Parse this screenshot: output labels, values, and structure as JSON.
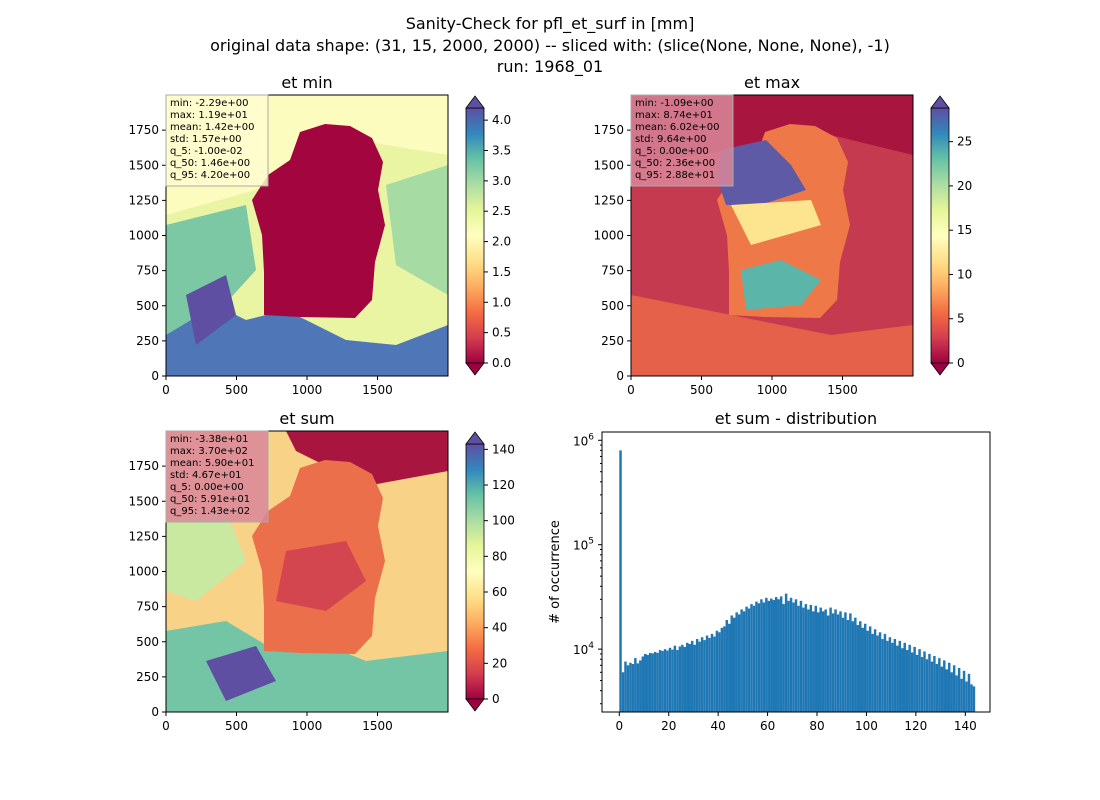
{
  "figure": {
    "title_lines": [
      "Sanity-Check for pfl_et_surf in [mm]",
      "original data shape: (31, 15, 2000, 2000) -- sliced with: (slice(None, None, None), -1)",
      "run: 1968_01"
    ],
    "colormap": "Spectral"
  },
  "chart_data": [
    {
      "type": "heatmap",
      "title": "et min",
      "xlim": [
        0,
        2000
      ],
      "ylim": [
        0,
        2000
      ],
      "xticks": [
        "0",
        "500",
        "1000",
        "1500"
      ],
      "yticks": [
        "0",
        "250",
        "500",
        "750",
        "1000",
        "1250",
        "1500",
        "1750"
      ],
      "colorbar": {
        "range": [
          0.0,
          4.2
        ],
        "ticks": [
          "0.0",
          "0.5",
          "1.0",
          "1.5",
          "2.0",
          "2.5",
          "3.0",
          "3.5",
          "4.0"
        ],
        "extend": "both"
      },
      "stats": [
        "min: -2.29e+00",
        "max: 1.19e+01",
        "mean: 1.42e+00",
        "std: 1.57e+00",
        "q_5: -1.00e-02",
        "q_50: 1.46e+00",
        "q_95: 4.20e+00"
      ],
      "stats_box_color": "#fffbd0"
    },
    {
      "type": "heatmap",
      "title": "et max",
      "xlim": [
        0,
        2000
      ],
      "ylim": [
        0,
        2000
      ],
      "xticks": [
        "0",
        "500",
        "1000",
        "1500"
      ],
      "yticks": [
        "0",
        "250",
        "500",
        "750",
        "1000",
        "1250",
        "1500",
        "1750"
      ],
      "colorbar": {
        "range": [
          0,
          28.8
        ],
        "ticks": [
          "0",
          "5",
          "10",
          "15",
          "20",
          "25"
        ],
        "extend": "both"
      },
      "stats": [
        "min: -1.09e+00",
        "max: 8.74e+01",
        "mean: 6.02e+00",
        "std: 9.64e+00",
        "q_5: 0.00e+00",
        "q_50: 2.36e+00",
        "q_95: 2.88e+01"
      ],
      "stats_box_color": "#d9879a"
    },
    {
      "type": "heatmap",
      "title": "et sum",
      "xlim": [
        0,
        2000
      ],
      "ylim": [
        0,
        2000
      ],
      "xticks": [
        "0",
        "500",
        "1000",
        "1500"
      ],
      "yticks": [
        "0",
        "250",
        "500",
        "750",
        "1000",
        "1250",
        "1500",
        "1750"
      ],
      "colorbar": {
        "range": [
          0,
          143
        ],
        "ticks": [
          "0",
          "20",
          "40",
          "60",
          "80",
          "100",
          "120",
          "140"
        ],
        "extend": "both"
      },
      "stats": [
        "min: -3.38e+01",
        "max: 3.70e+02",
        "mean: 5.90e+01",
        "std: 4.67e+01",
        "q_5: 0.00e+00",
        "q_50: 5.91e+01",
        "q_95: 1.43e+02"
      ],
      "stats_box_color": "#d9879a"
    },
    {
      "type": "bar",
      "title": "et sum - distribution",
      "xlabel": "",
      "ylabel": "# of occurrence",
      "yscale": "log",
      "xlim": [
        -7,
        150
      ],
      "ylim": [
        2500,
        1200000
      ],
      "xticks": [
        "0",
        "20",
        "40",
        "60",
        "80",
        "100",
        "120",
        "140"
      ],
      "yticks": [
        {
          "base": "10",
          "exp": "4",
          "value": 10000
        },
        {
          "base": "10",
          "exp": "5",
          "value": 100000
        },
        {
          "base": "10",
          "exp": "6",
          "value": 1000000
        }
      ],
      "bar_color": "#1f77b4",
      "bin_width": 1,
      "bins_x_start": 0,
      "values": [
        800000,
        6000,
        7600,
        7000,
        7400,
        7200,
        8200,
        7300,
        7800,
        8500,
        9000,
        8800,
        9200,
        9100,
        9400,
        9200,
        9800,
        9600,
        10000,
        9700,
        10300,
        9900,
        10800,
        9800,
        10600,
        11000,
        10500,
        11500,
        11200,
        12000,
        11000,
        12500,
        11800,
        13000,
        12200,
        13500,
        12800,
        14000,
        13200,
        15000,
        14500,
        16000,
        16500,
        19000,
        17500,
        21000,
        20000,
        22500,
        21500,
        24000,
        23000,
        25500,
        24500,
        27000,
        26000,
        28500,
        27500,
        30000,
        28000,
        31000,
        29000,
        30500,
        29500,
        31500,
        30000,
        32000,
        27000,
        34000,
        29000,
        31000,
        28000,
        30000,
        26000,
        29000,
        25000,
        27000,
        24000,
        26500,
        23000,
        26000,
        22500,
        25000,
        23000,
        24000,
        21000,
        25000,
        22000,
        24000,
        21500,
        23000,
        20000,
        22500,
        19000,
        22000,
        18500,
        20000,
        17000,
        18500,
        16000,
        17500,
        15000,
        16500,
        14000,
        15500,
        13500,
        14500,
        12500,
        14000,
        12000,
        13000,
        11500,
        12500,
        10800,
        12000,
        10200,
        11500,
        9800,
        11000,
        9300,
        10500,
        8800,
        10000,
        8400,
        9500,
        8000,
        9000,
        7600,
        8600,
        7200,
        8200,
        6800,
        7800,
        6400,
        7400,
        6000,
        7000,
        5600,
        6600,
        5200,
        6200,
        4900,
        5800,
        4600,
        4400
      ]
    }
  ]
}
